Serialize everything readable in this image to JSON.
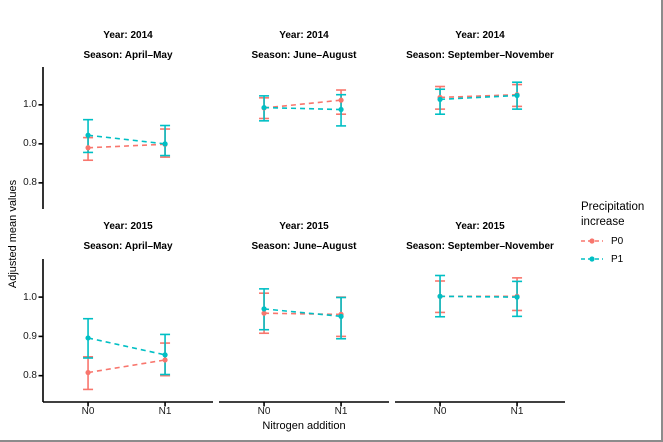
{
  "figure": {
    "y_axis_title": "Adjusted mean values",
    "x_axis_title": "Nitrogen addition",
    "border_color": "#8c8c8c",
    "axis_color": "#000000",
    "legend": {
      "title_lines": [
        "Precipitation",
        "increase"
      ],
      "items": [
        {
          "label": "P0",
          "color": "#F8766D"
        },
        {
          "label": "P1",
          "color": "#00BFC4"
        }
      ]
    }
  },
  "chart_data": {
    "type": "line",
    "description": "Faceted point-range plot (2 rows x 3 cols): adjusted mean values with error bars vs nitrogen addition, dashed connectors, grouped by precipitation increase (P0 salmon, P1 teal)",
    "x_categories": [
      "N0",
      "N1"
    ],
    "y_ticks": [
      0.8,
      0.9,
      1.0
    ],
    "ylim": [
      0.733,
      1.097
    ],
    "series_colors": {
      "P0": "#F8766D",
      "P1": "#00BFC4"
    },
    "legend_position": "right",
    "facets": [
      {
        "row": 0,
        "col": 0,
        "year_label": "Year: 2014",
        "season_label": "Season: April–May",
        "series": [
          {
            "name": "P0",
            "points": [
              {
                "x": "N0",
                "mean": 0.89,
                "lo": 0.858,
                "hi": 0.916
              },
              {
                "x": "N1",
                "mean": 0.899,
                "lo": 0.866,
                "hi": 0.938
              }
            ]
          },
          {
            "name": "P1",
            "points": [
              {
                "x": "N0",
                "mean": 0.922,
                "lo": 0.878,
                "hi": 0.962
              },
              {
                "x": "N1",
                "mean": 0.9,
                "lo": 0.87,
                "hi": 0.947
              }
            ]
          }
        ]
      },
      {
        "row": 0,
        "col": 1,
        "year_label": "Year: 2014",
        "season_label": "Season: June–August",
        "series": [
          {
            "name": "P0",
            "points": [
              {
                "x": "N0",
                "mean": 0.992,
                "lo": 0.965,
                "hi": 1.018
              },
              {
                "x": "N1",
                "mean": 1.012,
                "lo": 0.976,
                "hi": 1.038
              }
            ]
          },
          {
            "name": "P1",
            "points": [
              {
                "x": "N0",
                "mean": 0.993,
                "lo": 0.959,
                "hi": 1.023
              },
              {
                "x": "N1",
                "mean": 0.988,
                "lo": 0.946,
                "hi": 1.026
              }
            ]
          }
        ]
      },
      {
        "row": 0,
        "col": 2,
        "year_label": "Year: 2014",
        "season_label": "Season: September–November",
        "series": [
          {
            "name": "P0",
            "points": [
              {
                "x": "N0",
                "mean": 1.019,
                "lo": 0.989,
                "hi": 1.047
              },
              {
                "x": "N1",
                "mean": 1.026,
                "lo": 0.996,
                "hi": 1.052
              }
            ]
          },
          {
            "name": "P1",
            "points": [
              {
                "x": "N0",
                "mean": 1.014,
                "lo": 0.976,
                "hi": 1.04
              },
              {
                "x": "N1",
                "mean": 1.024,
                "lo": 0.989,
                "hi": 1.058
              }
            ]
          }
        ]
      },
      {
        "row": 1,
        "col": 0,
        "year_label": "Year: 2015",
        "season_label": "Season: April–May",
        "series": [
          {
            "name": "P0",
            "points": [
              {
                "x": "N0",
                "mean": 0.808,
                "lo": 0.765,
                "hi": 0.848
              },
              {
                "x": "N1",
                "mean": 0.84,
                "lo": 0.8,
                "hi": 0.883
              }
            ]
          },
          {
            "name": "P1",
            "points": [
              {
                "x": "N0",
                "mean": 0.896,
                "lo": 0.845,
                "hi": 0.945
              },
              {
                "x": "N1",
                "mean": 0.853,
                "lo": 0.803,
                "hi": 0.905
              }
            ]
          }
        ]
      },
      {
        "row": 1,
        "col": 1,
        "year_label": "Year: 2015",
        "season_label": "Season: June–August",
        "series": [
          {
            "name": "P0",
            "points": [
              {
                "x": "N0",
                "mean": 0.959,
                "lo": 0.908,
                "hi": 1.01
              },
              {
                "x": "N1",
                "mean": 0.956,
                "lo": 0.9,
                "hi": 1.0
              }
            ]
          },
          {
            "name": "P1",
            "points": [
              {
                "x": "N0",
                "mean": 0.97,
                "lo": 0.917,
                "hi": 1.021
              },
              {
                "x": "N1",
                "mean": 0.951,
                "lo": 0.894,
                "hi": 0.999
              }
            ]
          }
        ]
      },
      {
        "row": 1,
        "col": 2,
        "year_label": "Year: 2015",
        "season_label": "Season: September–November",
        "series": [
          {
            "name": "P0",
            "points": [
              {
                "x": "N0",
                "mean": 1.002,
                "lo": 0.961,
                "hi": 1.041
              },
              {
                "x": "N1",
                "mean": 1.002,
                "lo": 0.966,
                "hi": 1.049
              }
            ]
          },
          {
            "name": "P1",
            "points": [
              {
                "x": "N0",
                "mean": 1.002,
                "lo": 0.95,
                "hi": 1.055
              },
              {
                "x": "N1",
                "mean": 1.0,
                "lo": 0.951,
                "hi": 1.04
              }
            ]
          }
        ]
      }
    ]
  }
}
